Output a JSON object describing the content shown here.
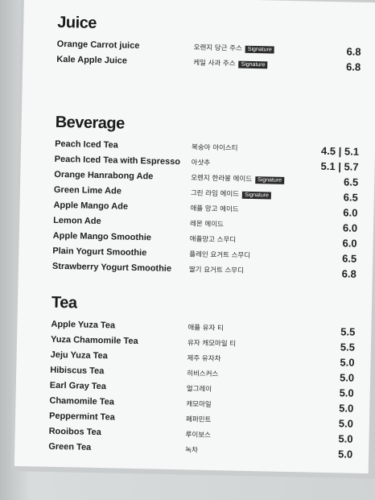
{
  "sections": [
    {
      "title": "Juice",
      "items": [
        {
          "name": "Orange Carrot juice",
          "korean": "오렌지 당근 주스",
          "badge": "Signature",
          "price": "6.8"
        },
        {
          "name": "Kale Apple Juice",
          "korean": "케일 사과 주스",
          "badge": "Signature",
          "price": "6.8"
        }
      ]
    },
    {
      "title": "Beverage",
      "items": [
        {
          "name": "Peach Iced Tea",
          "korean": "복숭아 아이스티",
          "price": "4.5 | 5.1"
        },
        {
          "name": "Peach Iced Tea with  Espresso",
          "korean": "아샷추",
          "price": "5.1 | 5.7"
        },
        {
          "name": "Orange Hanrabong Ade",
          "korean": "오렌지 한라봉 에이드",
          "badge": "Signature",
          "price": "6.5"
        },
        {
          "name": "Green Lime Ade",
          "korean": "그린 라임 에이드",
          "badge": "Signature",
          "price": "6.5"
        },
        {
          "name": "Apple Mango Ade",
          "korean": "애플 망고 에이드",
          "price": "6.0"
        },
        {
          "name": "Lemon Ade",
          "korean": "레몬 에이드",
          "price": "6.0"
        },
        {
          "name": "Apple Mango Smoothie",
          "korean": "애플망고 스무디",
          "price": "6.0"
        },
        {
          "name": "Plain Yogurt Smoothie",
          "korean": "플레인 요거트 스무디",
          "price": "6.5"
        },
        {
          "name": "Strawberry Yogurt Smoothie",
          "korean": "딸기 요거트 스무디",
          "price": "6.8"
        }
      ]
    },
    {
      "title": "Tea",
      "items": [
        {
          "name": "Apple Yuza Tea",
          "korean": "애플 유자 티",
          "price": "5.5"
        },
        {
          "name": "Yuza Chamomile Tea",
          "korean": "유자 캐모마일 티",
          "price": "5.5"
        },
        {
          "name": "Jeju Yuza Tea",
          "korean": "제주 유자차",
          "price": "5.0"
        },
        {
          "name": "Hibiscus Tea",
          "korean": "히비스커스",
          "price": "5.0"
        },
        {
          "name": "Earl Gray Tea",
          "korean": "얼그레이",
          "price": "5.0"
        },
        {
          "name": "Chamomile Tea",
          "korean": "캐모마일",
          "price": "5.0"
        },
        {
          "name": "Peppermint Tea",
          "korean": "페퍼민트",
          "price": "5.0"
        },
        {
          "name": "Rooibos Tea",
          "korean": "루이보스",
          "price": "5.0"
        },
        {
          "name": "Green Tea",
          "korean": "녹차",
          "price": "5.0"
        }
      ]
    }
  ]
}
